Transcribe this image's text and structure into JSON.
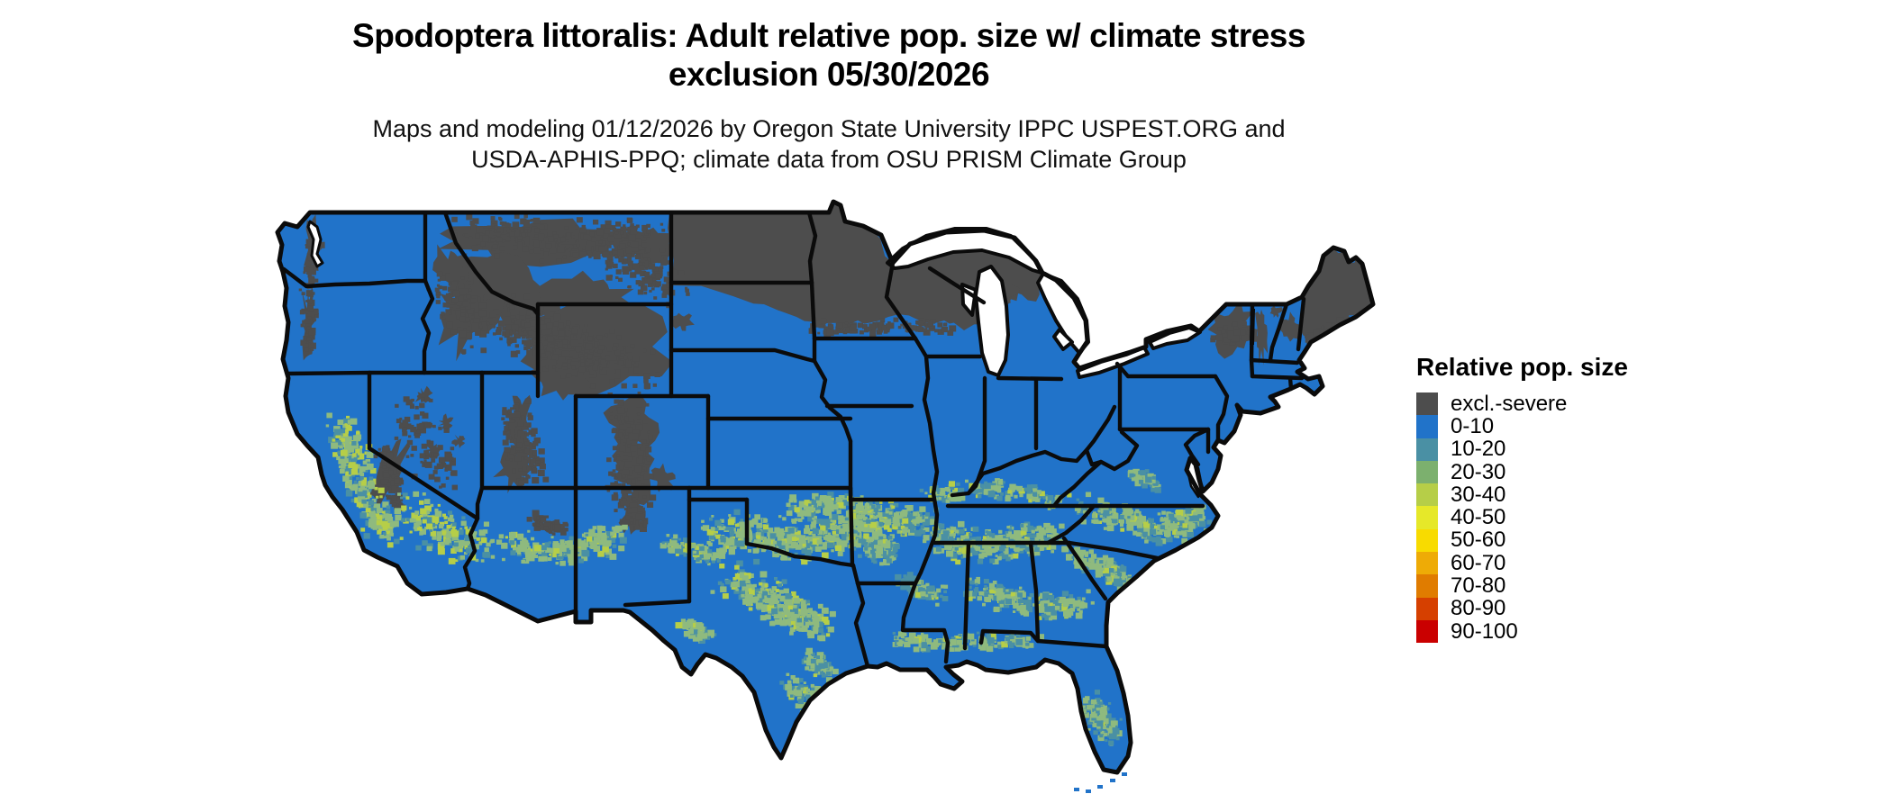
{
  "title": {
    "line1": "Spodoptera littoralis: Adult relative pop. size w/ climate stress",
    "line2": "exclusion 05/30/2026"
  },
  "subtitle": {
    "line1": "Maps and modeling 01/12/2026 by Oregon State University IPPC USPEST.ORG and",
    "line2": "USDA-APHIS-PPQ; climate data from OSU PRISM Climate Group"
  },
  "legend": {
    "title": "Relative pop. size",
    "items": [
      {
        "label": "excl.-severe",
        "color": "#4D4D4D"
      },
      {
        "label": "0-10",
        "color": "#2173C9"
      },
      {
        "label": "10-20",
        "color": "#4A90A4"
      },
      {
        "label": "20-30",
        "color": "#7CB06E"
      },
      {
        "label": "30-40",
        "color": "#B6CE48"
      },
      {
        "label": "40-50",
        "color": "#E6E829"
      },
      {
        "label": "50-60",
        "color": "#F8DB00"
      },
      {
        "label": "60-70",
        "color": "#EEAB06"
      },
      {
        "label": "70-80",
        "color": "#E07C00"
      },
      {
        "label": "80-90",
        "color": "#D64000"
      },
      {
        "label": "90-100",
        "color": "#CA0000"
      }
    ]
  },
  "map": {
    "background": "#FFFFFF",
    "border_color": "#0B0B0B",
    "speckle_green": "#8FBA7E"
  }
}
